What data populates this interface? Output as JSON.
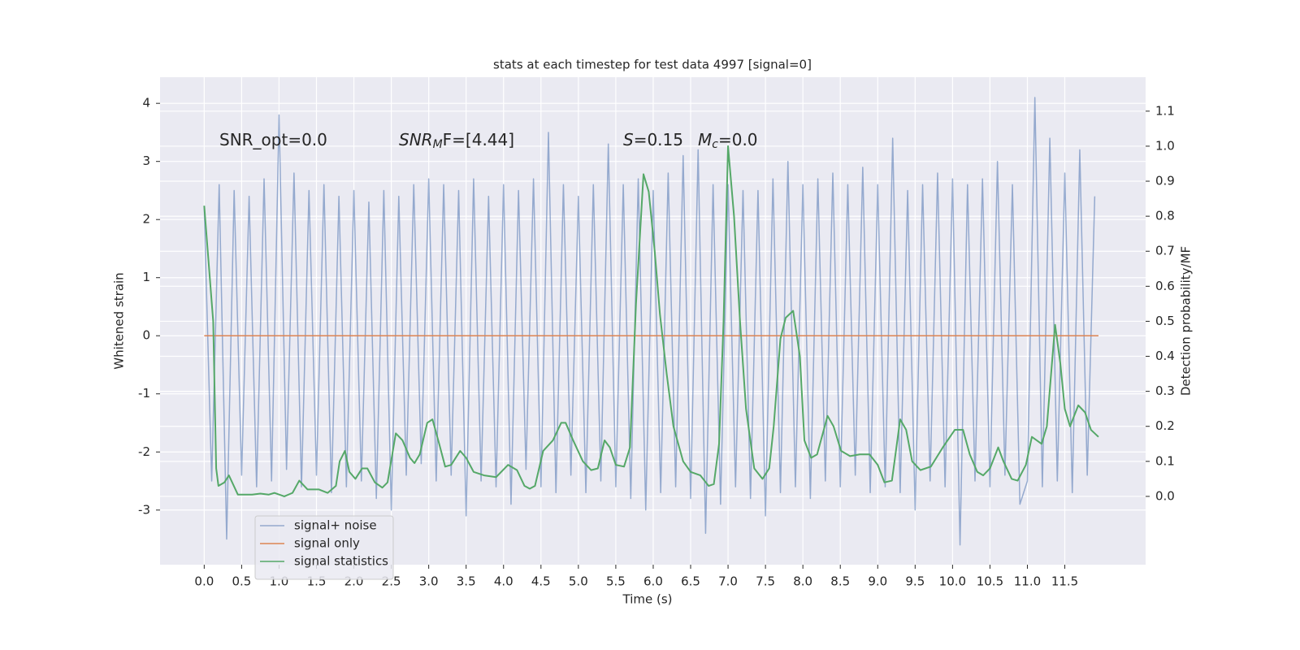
{
  "chart_data": {
    "type": "line",
    "title": "stats at each timestep for test data 4997 [signal=0]",
    "xlabel": "Time (s)",
    "ylabel": "Whitened strain",
    "y2label": "Detection probability/MF",
    "annotations": [
      {
        "text": "SNR_opt=0.0"
      },
      {
        "italic": "SNR",
        "sub": "M",
        "text": "F=[4.44]"
      },
      {
        "italic": "S",
        "text": "=0.15"
      },
      {
        "italic": "M",
        "sub": "c",
        "text": "=0.0"
      }
    ],
    "xlim": [
      -0.59,
      12.58
    ],
    "xticks": [
      {
        "value": 0,
        "label": "0.0"
      },
      0.5,
      {
        "value": 1,
        "label": "1.0"
      },
      1.5,
      {
        "value": 2,
        "label": "2.0"
      },
      2.5,
      {
        "value": 3,
        "label": "3.0"
      },
      3.5,
      {
        "value": 4,
        "label": "4.0"
      },
      4.5,
      {
        "value": 5,
        "label": "5.0"
      },
      5.5,
      {
        "value": 6,
        "label": "6.0"
      },
      6.5,
      {
        "value": 7,
        "label": "7.0"
      },
      7.5,
      {
        "value": 8,
        "label": "8.0"
      },
      8.5,
      {
        "value": 9,
        "label": "9.0"
      },
      9.5,
      {
        "value": 10,
        "label": "10.0"
      },
      10.5,
      {
        "value": 11,
        "label": "11.0"
      },
      11.5
    ],
    "ylim": [
      -3.94,
      4.45
    ],
    "yticks": [
      -3,
      -2,
      -1,
      0,
      1,
      2,
      3,
      4
    ],
    "y2lim": [
      -0.195,
      1.197
    ],
    "y2ticks": [
      {
        "value": 0,
        "label": "0.0"
      },
      0.1,
      0.2,
      0.3,
      0.4,
      0.5,
      0.6,
      0.7,
      0.8,
      0.9,
      {
        "value": 1,
        "label": "1.0"
      },
      1.1
    ],
    "grid": true,
    "legend": "lower left",
    "series": [
      {
        "name": "signal+ noise",
        "color": "#4c72b0",
        "alpha": 0.55,
        "x": [
          0,
          0.1,
          0.2,
          0.3,
          0.4,
          0.5,
          0.6,
          0.7,
          0.8,
          0.9,
          1,
          1.1,
          1.2,
          1.3,
          1.4,
          1.5,
          1.6,
          1.7,
          1.8,
          1.9,
          2,
          2.1,
          2.2,
          2.3,
          2.4,
          2.5,
          2.6,
          2.7,
          2.8,
          2.9,
          3,
          3.1,
          3.2,
          3.3,
          3.4,
          3.5,
          3.6,
          3.7,
          3.8,
          3.9,
          4,
          4.1,
          4.2,
          4.3,
          4.4,
          4.5,
          4.6,
          4.7,
          4.8,
          4.9,
          5,
          5.1,
          5.2,
          5.3,
          5.4,
          5.5,
          5.6,
          5.7,
          5.8,
          5.9,
          6,
          6.1,
          6.2,
          6.3,
          6.4,
          6.5,
          6.6,
          6.7,
          6.8,
          6.9,
          7,
          7.1,
          7.2,
          7.3,
          7.4,
          7.5,
          7.6,
          7.7,
          7.8,
          7.9,
          8,
          8.1,
          8.2,
          8.3,
          8.4,
          8.5,
          8.6,
          8.7,
          8.8,
          8.9,
          9,
          9.1,
          9.2,
          9.3,
          9.4,
          9.5,
          9.6,
          9.7,
          9.8,
          9.9,
          10,
          10.1,
          10.2,
          10.3,
          10.4,
          10.5,
          10.6,
          10.7,
          10.8,
          10.9,
          11,
          11.1,
          11.2,
          11.3,
          11.4,
          11.5,
          11.6,
          11.7,
          11.8,
          11.9
        ],
        "values": [
          2.2,
          -2.5,
          2.6,
          -3.5,
          2.5,
          -2.4,
          2.4,
          -2.6,
          2.7,
          -2.5,
          3.8,
          -2.3,
          2.8,
          -2.6,
          2.5,
          -2.4,
          2.6,
          -2.7,
          2.4,
          -2.6,
          2.5,
          -2.5,
          2.3,
          -2.8,
          2.5,
          -3.0,
          2.4,
          -2.4,
          2.6,
          -2.2,
          2.7,
          -2.5,
          2.6,
          -2.4,
          2.5,
          -3.1,
          2.7,
          -2.5,
          2.4,
          -2.6,
          2.6,
          -2.9,
          2.5,
          -2.3,
          2.7,
          -2.6,
          3.5,
          -2.7,
          2.6,
          -2.4,
          2.4,
          -2.7,
          2.6,
          -2.5,
          3.3,
          -2.6,
          2.6,
          -2.8,
          2.7,
          -3.0,
          2.5,
          -2.7,
          2.8,
          -2.6,
          3.1,
          -2.8,
          3.2,
          -3.4,
          2.6,
          -2.9,
          2.6,
          -2.6,
          2.5,
          -2.8,
          2.5,
          -3.1,
          2.7,
          -2.7,
          3.0,
          -2.6,
          2.6,
          -2.8,
          2.7,
          -2.5,
          2.8,
          -2.6,
          2.6,
          -2.4,
          2.9,
          -2.7,
          2.6,
          -2.6,
          3.4,
          -2.7,
          2.5,
          -3.0,
          2.6,
          -2.5,
          2.8,
          -2.6,
          2.7,
          -3.6,
          2.6,
          -2.5,
          2.7,
          -2.6,
          3.0,
          -2.4,
          2.6,
          -2.9,
          -2.5,
          4.1,
          -2.6,
          3.4,
          -2.5,
          2.8,
          -2.7,
          3.2,
          -2.4,
          2.4
        ]
      },
      {
        "name": "signal only",
        "color": "#dd8452",
        "x": [
          0,
          11.95
        ],
        "values": [
          0,
          0
        ]
      },
      {
        "name": "signal statistics",
        "color": "#55a868",
        "axis": "y2",
        "x": [
          0,
          0.12,
          0.16,
          0.19,
          0.27,
          0.33,
          0.45,
          0.64,
          0.75,
          0.86,
          0.94,
          1.07,
          1.18,
          1.27,
          1.38,
          1.53,
          1.65,
          1.76,
          1.81,
          1.88,
          1.94,
          2.02,
          2.11,
          2.18,
          2.28,
          2.38,
          2.45,
          2.56,
          2.65,
          2.75,
          2.81,
          2.88,
          2.98,
          3.05,
          3.14,
          3.22,
          3.3,
          3.42,
          3.5,
          3.6,
          3.74,
          3.9,
          4.06,
          4.18,
          4.28,
          4.35,
          4.42,
          4.53,
          4.66,
          4.77,
          4.83,
          4.93,
          5.06,
          5.17,
          5.26,
          5.35,
          5.42,
          5.5,
          5.61,
          5.69,
          5.77,
          5.87,
          5.94,
          6.02,
          6.09,
          6.18,
          6.27,
          6.4,
          6.5,
          6.63,
          6.74,
          6.81,
          6.88,
          6.94,
          7,
          7.08,
          7.16,
          7.24,
          7.35,
          7.46,
          7.55,
          7.61,
          7.7,
          7.77,
          7.87,
          7.96,
          8.02,
          8.11,
          8.19,
          8.33,
          8.41,
          8.51,
          8.63,
          8.76,
          8.89,
          9,
          9.09,
          9.19,
          9.3,
          9.38,
          9.46,
          9.57,
          9.71,
          9.87,
          10.03,
          10.14,
          10.23,
          10.33,
          10.41,
          10.5,
          10.61,
          10.68,
          10.79,
          10.87,
          10.98,
          11.06,
          11.19,
          11.26,
          11.37,
          11.44,
          11.5,
          11.57,
          11.68,
          11.77,
          11.85,
          11.95
        ],
        "values": [
          0.83,
          0.5,
          0.08,
          0.03,
          0.04,
          0.06,
          0.005,
          0.005,
          0.008,
          0.005,
          0.01,
          0,
          0.01,
          0.045,
          0.02,
          0.02,
          0.01,
          0.03,
          0.1,
          0.13,
          0.07,
          0.05,
          0.08,
          0.08,
          0.04,
          0.025,
          0.04,
          0.18,
          0.16,
          0.11,
          0.095,
          0.12,
          0.21,
          0.22,
          0.15,
          0.085,
          0.09,
          0.13,
          0.11,
          0.07,
          0.06,
          0.055,
          0.09,
          0.075,
          0.03,
          0.022,
          0.03,
          0.13,
          0.16,
          0.21,
          0.21,
          0.16,
          0.1,
          0.075,
          0.08,
          0.16,
          0.14,
          0.09,
          0.085,
          0.14,
          0.55,
          0.92,
          0.87,
          0.7,
          0.52,
          0.35,
          0.2,
          0.1,
          0.07,
          0.06,
          0.03,
          0.035,
          0.15,
          0.5,
          1.0,
          0.8,
          0.5,
          0.25,
          0.08,
          0.05,
          0.08,
          0.2,
          0.45,
          0.51,
          0.53,
          0.4,
          0.16,
          0.11,
          0.12,
          0.23,
          0.2,
          0.13,
          0.115,
          0.12,
          0.12,
          0.09,
          0.04,
          0.045,
          0.22,
          0.19,
          0.1,
          0.075,
          0.085,
          0.14,
          0.19,
          0.19,
          0.12,
          0.07,
          0.06,
          0.08,
          0.14,
          0.1,
          0.05,
          0.045,
          0.09,
          0.17,
          0.15,
          0.2,
          0.49,
          0.38,
          0.25,
          0.2,
          0.26,
          0.24,
          0.19,
          0.17
        ]
      }
    ]
  }
}
